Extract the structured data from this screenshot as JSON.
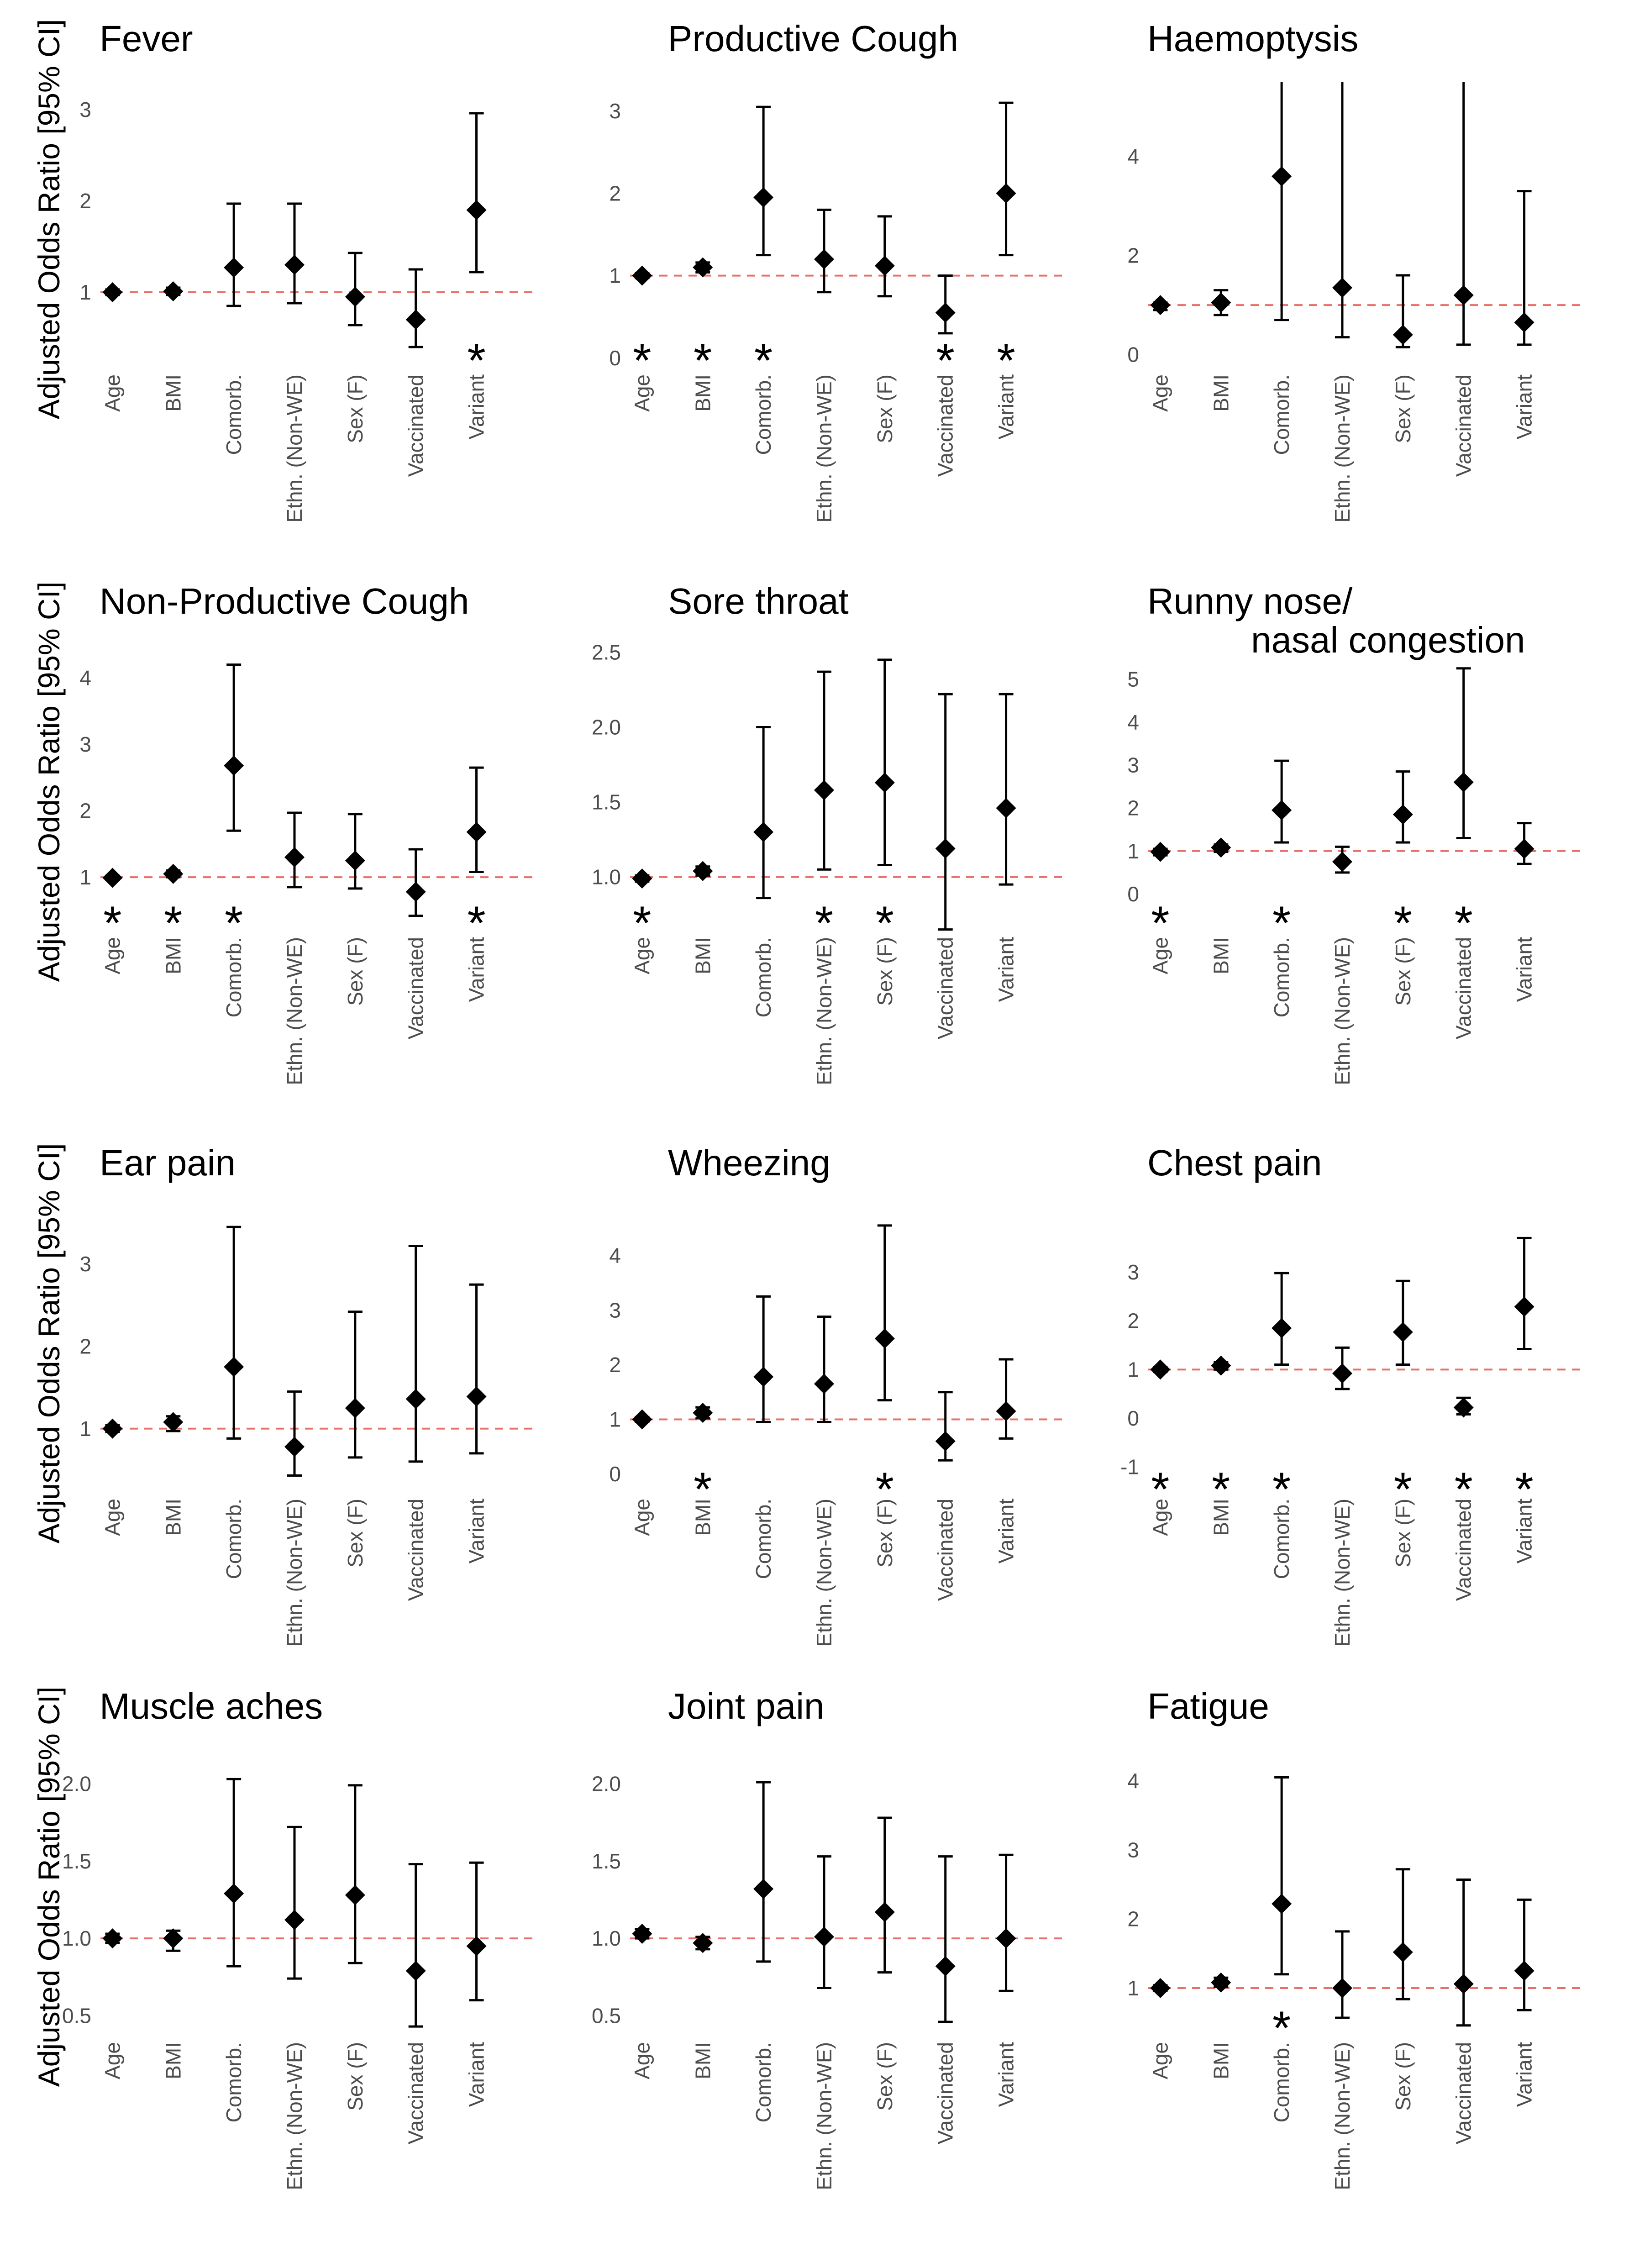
{
  "figure": {
    "ylabel": "Adjusted Odds Ratio [95% CI]",
    "reference_line_color": "#e8706a",
    "point_color": "#000000"
  },
  "chart_data": [
    {
      "type": "scatter",
      "title": "Fever",
      "ylabel": "Adjusted Odds Ratio [95% CI]",
      "categories": [
        "Age",
        "BMI",
        "Comorb.",
        "Ethn. (Non-WE)",
        "Sex (F)",
        "Vaccinated",
        "Variant"
      ],
      "yticks": [
        "1",
        "2",
        "3"
      ],
      "ylim": [
        0.1,
        3.3
      ],
      "reference": 1,
      "values": [
        1.0,
        1.01,
        1.27,
        1.3,
        0.95,
        0.7,
        1.9
      ],
      "ci_low": [
        0.97,
        0.97,
        0.85,
        0.88,
        0.64,
        0.4,
        1.22
      ],
      "ci_high": [
        1.03,
        1.05,
        1.97,
        1.97,
        1.43,
        1.25,
        2.96
      ],
      "significant": [
        "",
        "",
        "",
        "",
        "",
        "",
        "*"
      ]
    },
    {
      "type": "scatter",
      "title": "Productive Cough",
      "ylabel": "",
      "categories": [
        "Age",
        "BMI",
        "Comorb.",
        "Ethn. (Non-WE)",
        "Sex (F)",
        "Vaccinated",
        "Variant"
      ],
      "yticks": [
        "0",
        "1",
        "2",
        "3"
      ],
      "ylim": [
        -0.2,
        3.35
      ],
      "reference": 1,
      "values": [
        1.0,
        1.1,
        1.95,
        1.2,
        1.12,
        0.55,
        2.0
      ],
      "ci_low": [
        0.97,
        1.04,
        1.25,
        0.8,
        0.75,
        0.3,
        1.25
      ],
      "ci_high": [
        1.03,
        1.16,
        3.05,
        1.8,
        1.72,
        1.0,
        3.1
      ],
      "significant": [
        "*",
        "*",
        "*",
        "",
        "",
        "*",
        "*"
      ]
    },
    {
      "type": "scatter",
      "title": "Haemoptysis",
      "ylabel": "",
      "categories": [
        "Age",
        "BMI",
        "Comorb.",
        "Ethn. (Non-WE)",
        "Sex (F)",
        "Vaccinated",
        "Variant"
      ],
      "yticks": [
        "0",
        "2",
        "4"
      ],
      "ylim": [
        -0.4,
        5.5
      ],
      "reference": 1,
      "values": [
        1.0,
        1.05,
        3.6,
        1.35,
        0.4,
        1.2,
        0.65
      ],
      "ci_low": [
        0.9,
        0.8,
        0.7,
        0.35,
        0.15,
        0.2,
        0.2
      ],
      "ci_high": [
        1.05,
        1.3,
        5.5,
        5.5,
        1.6,
        5.5,
        3.3
      ],
      "significant": [
        "",
        "",
        "",
        "",
        "",
        "",
        ""
      ]
    },
    {
      "type": "scatter",
      "title": "Non-Productive Cough",
      "ylabel": "Adjusted Odds Ratio [95% CI]",
      "categories": [
        "Age",
        "BMI",
        "Comorb.",
        "Ethn. (Non-WE)",
        "Sex (F)",
        "Vaccinated",
        "Variant"
      ],
      "yticks": [
        "1",
        "2",
        "3",
        "4"
      ],
      "ylim": [
        0.1,
        4.5
      ],
      "reference": 1,
      "values": [
        0.99,
        1.05,
        2.68,
        1.3,
        1.25,
        0.78,
        1.68
      ],
      "ci_low": [
        0.96,
        1.0,
        1.7,
        0.85,
        0.83,
        0.42,
        1.08
      ],
      "ci_high": [
        1.02,
        1.1,
        4.2,
        1.97,
        1.95,
        1.42,
        2.65
      ],
      "significant": [
        "*",
        "*",
        "*",
        "",
        "",
        "",
        "*"
      ]
    },
    {
      "type": "scatter",
      "title": "Sore throat",
      "ylabel": "",
      "categories": [
        "Age",
        "BMI",
        "Comorb.",
        "Ethn. (Non-WE)",
        "Sex (F)",
        "Vaccinated",
        "Variant"
      ],
      "yticks": [
        "1.0",
        "1.5",
        "2.0",
        "2.5"
      ],
      "ylim": [
        0.6,
        2.55
      ],
      "reference": 1,
      "values": [
        0.99,
        1.04,
        1.3,
        1.58,
        1.63,
        1.19,
        1.46
      ],
      "ci_low": [
        0.97,
        1.01,
        0.86,
        1.05,
        1.08,
        0.65,
        0.95
      ],
      "ci_high": [
        1.01,
        1.07,
        2.0,
        2.37,
        2.45,
        2.22,
        2.22
      ],
      "significant": [
        "*",
        "",
        "",
        "*",
        "*",
        "",
        ""
      ]
    },
    {
      "type": "scatter",
      "title": "Runny nose/ nasal congestion",
      "ylabel": "",
      "categories": [
        "Age",
        "BMI",
        "Comorb.",
        "Ethn. (Non-WE)",
        "Sex (F)",
        "Vaccinated",
        "Variant"
      ],
      "yticks": [
        "0",
        "1",
        "2",
        "3",
        "4",
        "5"
      ],
      "ylim": [
        -1.0,
        5.8
      ],
      "reference": 1,
      "values": [
        0.98,
        1.08,
        1.95,
        0.75,
        1.85,
        2.6,
        1.05
      ],
      "ci_low": [
        0.9,
        0.98,
        1.2,
        0.5,
        1.2,
        1.3,
        0.7
      ],
      "ci_high": [
        1.05,
        1.15,
        3.1,
        1.1,
        2.85,
        5.25,
        1.65
      ],
      "significant": [
        "*",
        "",
        "*",
        "",
        "*",
        "*",
        ""
      ]
    },
    {
      "type": "scatter",
      "title": "Ear pain",
      "ylabel": "Adjusted Odds Ratio [95% CI]",
      "categories": [
        "Age",
        "BMI",
        "Comorb.",
        "Ethn. (Non-WE)",
        "Sex (F)",
        "Vaccinated",
        "Variant"
      ],
      "yticks": [
        "1",
        "2",
        "3"
      ],
      "ylim": [
        0.15,
        3.7
      ],
      "reference": 1,
      "values": [
        1.0,
        1.08,
        1.75,
        0.78,
        1.25,
        1.36,
        1.39
      ],
      "ci_low": [
        0.96,
        0.97,
        0.88,
        0.43,
        0.65,
        0.6,
        0.7
      ],
      "ci_high": [
        1.04,
        1.15,
        3.45,
        1.45,
        2.42,
        3.22,
        2.75
      ],
      "significant": [
        "",
        "",
        "",
        "",
        "",
        "",
        ""
      ]
    },
    {
      "type": "scatter",
      "title": "Wheezing",
      "ylabel": "",
      "categories": [
        "Age",
        "BMI",
        "Comorb.",
        "Ethn. (Non-WE)",
        "Sex (F)",
        "Vaccinated",
        "Variant"
      ],
      "yticks": [
        "0",
        "1",
        "2",
        "3",
        "4"
      ],
      "ylim": [
        -0.45,
        4.9
      ],
      "reference": 1,
      "values": [
        1.0,
        1.12,
        1.78,
        1.65,
        2.48,
        0.6,
        1.15
      ],
      "ci_low": [
        0.96,
        1.02,
        0.95,
        0.95,
        1.35,
        0.25,
        0.65
      ],
      "ci_high": [
        1.04,
        1.22,
        3.25,
        2.88,
        4.55,
        1.5,
        2.1
      ],
      "significant": [
        "",
        "*",
        "",
        "",
        "*",
        "",
        ""
      ]
    },
    {
      "type": "scatter",
      "title": "Chest pain",
      "ylabel": "",
      "categories": [
        "Age",
        "BMI",
        "Comorb.",
        "Ethn. (Non-WE)",
        "Sex (F)",
        "Vaccinated",
        "Variant"
      ],
      "yticks": [
        "-1",
        "0",
        "1",
        "2",
        "3"
      ],
      "ylim": [
        -1.65,
        4.35
      ],
      "reference": 1,
      "values": [
        1.0,
        1.08,
        1.85,
        0.92,
        1.77,
        0.22,
        2.29
      ],
      "ci_low": [
        0.95,
        1.0,
        1.1,
        0.6,
        1.1,
        0.08,
        1.42
      ],
      "ci_high": [
        1.05,
        1.15,
        2.98,
        1.45,
        2.82,
        0.42,
        3.7
      ],
      "significant": [
        "*",
        "*",
        "*",
        "",
        "*",
        "*",
        "*"
      ]
    },
    {
      "type": "scatter",
      "title": "Muscle aches",
      "ylabel": "Adjusted Odds Ratio [95% CI]",
      "categories": [
        "Age",
        "BMI",
        "Comorb.",
        "Ethn. (Non-WE)",
        "Sex (F)",
        "Vaccinated",
        "Variant"
      ],
      "yticks": [
        "0.5",
        "1.0",
        "1.5",
        "2.0"
      ],
      "ylim": [
        0.33,
        2.22
      ],
      "reference": 1,
      "values": [
        1.0,
        1.0,
        1.29,
        1.12,
        1.28,
        0.79,
        0.95
      ],
      "ci_low": [
        0.97,
        0.92,
        0.82,
        0.74,
        0.84,
        0.43,
        0.6
      ],
      "ci_high": [
        1.03,
        1.05,
        2.03,
        1.72,
        1.99,
        1.48,
        1.49
      ],
      "significant": [
        "",
        "",
        "",
        "",
        "",
        "",
        ""
      ]
    },
    {
      "type": "scatter",
      "title": "Joint pain",
      "ylabel": "",
      "categories": [
        "Age",
        "BMI",
        "Comorb.",
        "Ethn. (Non-WE)",
        "Sex (F)",
        "Vaccinated",
        "Variant"
      ],
      "yticks": [
        "0.5",
        "1.0",
        "1.5",
        "2.0"
      ],
      "ylim": [
        0.33,
        2.22
      ],
      "reference": 1,
      "values": [
        1.03,
        0.97,
        1.32,
        1.01,
        1.17,
        0.82,
        1.0
      ],
      "ci_low": [
        1.0,
        0.93,
        0.85,
        0.68,
        0.78,
        0.46,
        0.66
      ],
      "ci_high": [
        1.06,
        1.01,
        2.01,
        1.53,
        1.78,
        1.53,
        1.54
      ],
      "significant": [
        "",
        "",
        "",
        "",
        "",
        "",
        ""
      ]
    },
    {
      "type": "scatter",
      "title": "Fatigue",
      "ylabel": "",
      "categories": [
        "Age",
        "BMI",
        "Comorb.",
        "Ethn. (Non-WE)",
        "Sex (F)",
        "Vaccinated",
        "Variant"
      ],
      "yticks": [
        "1",
        "2",
        "3",
        "4"
      ],
      "ylim": [
        0.22,
        4.45
      ],
      "reference": 1,
      "values": [
        1.0,
        1.08,
        2.22,
        1.0,
        1.52,
        1.06,
        1.25
      ],
      "ci_low": [
        0.96,
        1.02,
        1.2,
        0.57,
        0.84,
        0.46,
        0.68
      ],
      "ci_high": [
        1.04,
        1.15,
        4.05,
        1.82,
        2.72,
        2.57,
        2.28
      ],
      "significant": [
        "",
        "",
        "*",
        "",
        "",
        "",
        ""
      ]
    }
  ]
}
